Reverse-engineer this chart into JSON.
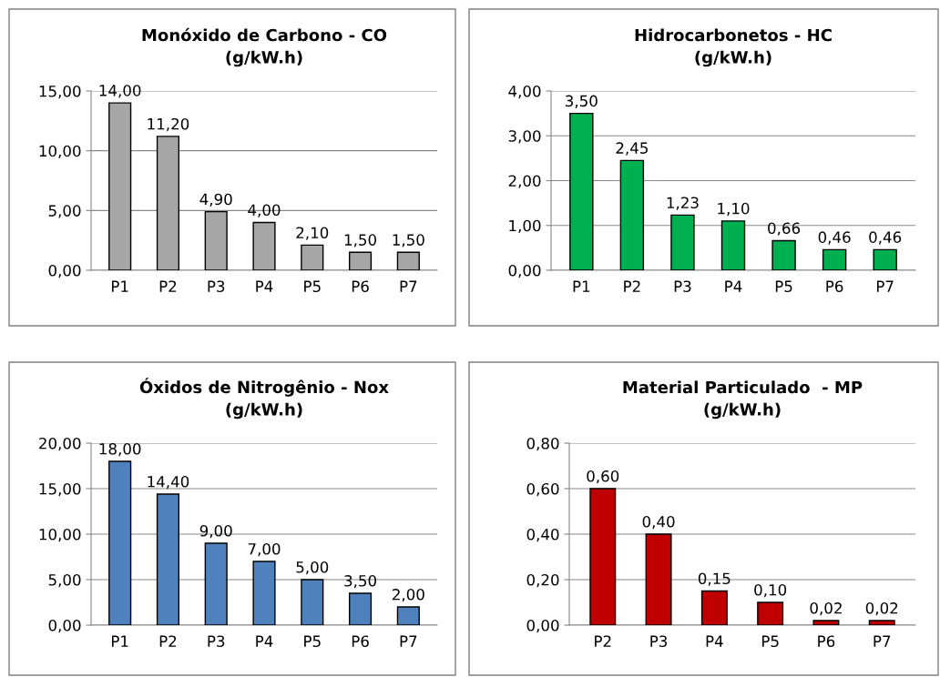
{
  "chart_data": [
    {
      "type": "bar",
      "title": "Monóxido de Carbono - CO\n(g/kW.h)",
      "categories": [
        "P1",
        "P2",
        "P3",
        "P4",
        "P5",
        "P6",
        "P7"
      ],
      "values": [
        14.0,
        11.2,
        4.9,
        4.0,
        2.1,
        1.5,
        1.5
      ],
      "value_labels": [
        "14,00",
        "11,20",
        "4,90",
        "4,00",
        "2,10",
        "1,50",
        "1,50"
      ],
      "color": "#a6a6a6",
      "ylim": [
        0,
        15
      ],
      "yticks": [
        {
          "value": 0,
          "label": "0,00"
        },
        {
          "value": 5,
          "label": "5,00"
        },
        {
          "value": 10,
          "label": "10,00"
        },
        {
          "value": 15,
          "label": "15,00"
        }
      ],
      "grid": "y"
    },
    {
      "type": "bar",
      "title": "Hidrocarbonetos - HC\n(g/kW.h)",
      "categories": [
        "P1",
        "P2",
        "P3",
        "P4",
        "P5",
        "P6",
        "P7"
      ],
      "values": [
        3.5,
        2.45,
        1.23,
        1.1,
        0.66,
        0.46,
        0.46
      ],
      "value_labels": [
        "3,50",
        "2,45",
        "1,23",
        "1,10",
        "0,66",
        "0,46",
        "0,46"
      ],
      "color": "#00b050",
      "ylim": [
        0,
        4
      ],
      "yticks": [
        {
          "value": 0,
          "label": "0,00"
        },
        {
          "value": 1,
          "label": "1,00"
        },
        {
          "value": 2,
          "label": "2,00"
        },
        {
          "value": 3,
          "label": "3,00"
        },
        {
          "value": 4,
          "label": "4,00"
        }
      ],
      "grid": "y"
    },
    {
      "type": "bar",
      "title": "Óxidos de Nitrogênio - Nox\n(g/kW.h)",
      "categories": [
        "P1",
        "P2",
        "P3",
        "P4",
        "P5",
        "P6",
        "P7"
      ],
      "values": [
        18.0,
        14.4,
        9.0,
        7.0,
        5.0,
        3.5,
        2.0
      ],
      "value_labels": [
        "18,00",
        "14,40",
        "9,00",
        "7,00",
        "5,00",
        "3,50",
        "2,00"
      ],
      "color": "#4f81bd",
      "ylim": [
        0,
        20
      ],
      "yticks": [
        {
          "value": 0,
          "label": "0,00"
        },
        {
          "value": 5,
          "label": "5,00"
        },
        {
          "value": 10,
          "label": "10,00"
        },
        {
          "value": 15,
          "label": "15,00"
        },
        {
          "value": 20,
          "label": "20,00"
        }
      ],
      "grid": "y"
    },
    {
      "type": "bar",
      "title": "Material Particulado  - MP\n(g/kW.h)",
      "categories": [
        "P2",
        "P3",
        "P4",
        "P5",
        "P6",
        "P7"
      ],
      "values": [
        0.6,
        0.4,
        0.15,
        0.1,
        0.02,
        0.02
      ],
      "value_labels": [
        "0,60",
        "0,40",
        "0,15",
        "0,10",
        "0,02",
        "0,02"
      ],
      "color": "#c00000",
      "ylim": [
        0,
        0.8
      ],
      "yticks": [
        {
          "value": 0,
          "label": "0,00"
        },
        {
          "value": 0.2,
          "label": "0,20"
        },
        {
          "value": 0.4,
          "label": "0,40"
        },
        {
          "value": 0.6,
          "label": "0,60"
        },
        {
          "value": 0.8,
          "label": "0,80"
        }
      ],
      "grid": "y"
    }
  ]
}
